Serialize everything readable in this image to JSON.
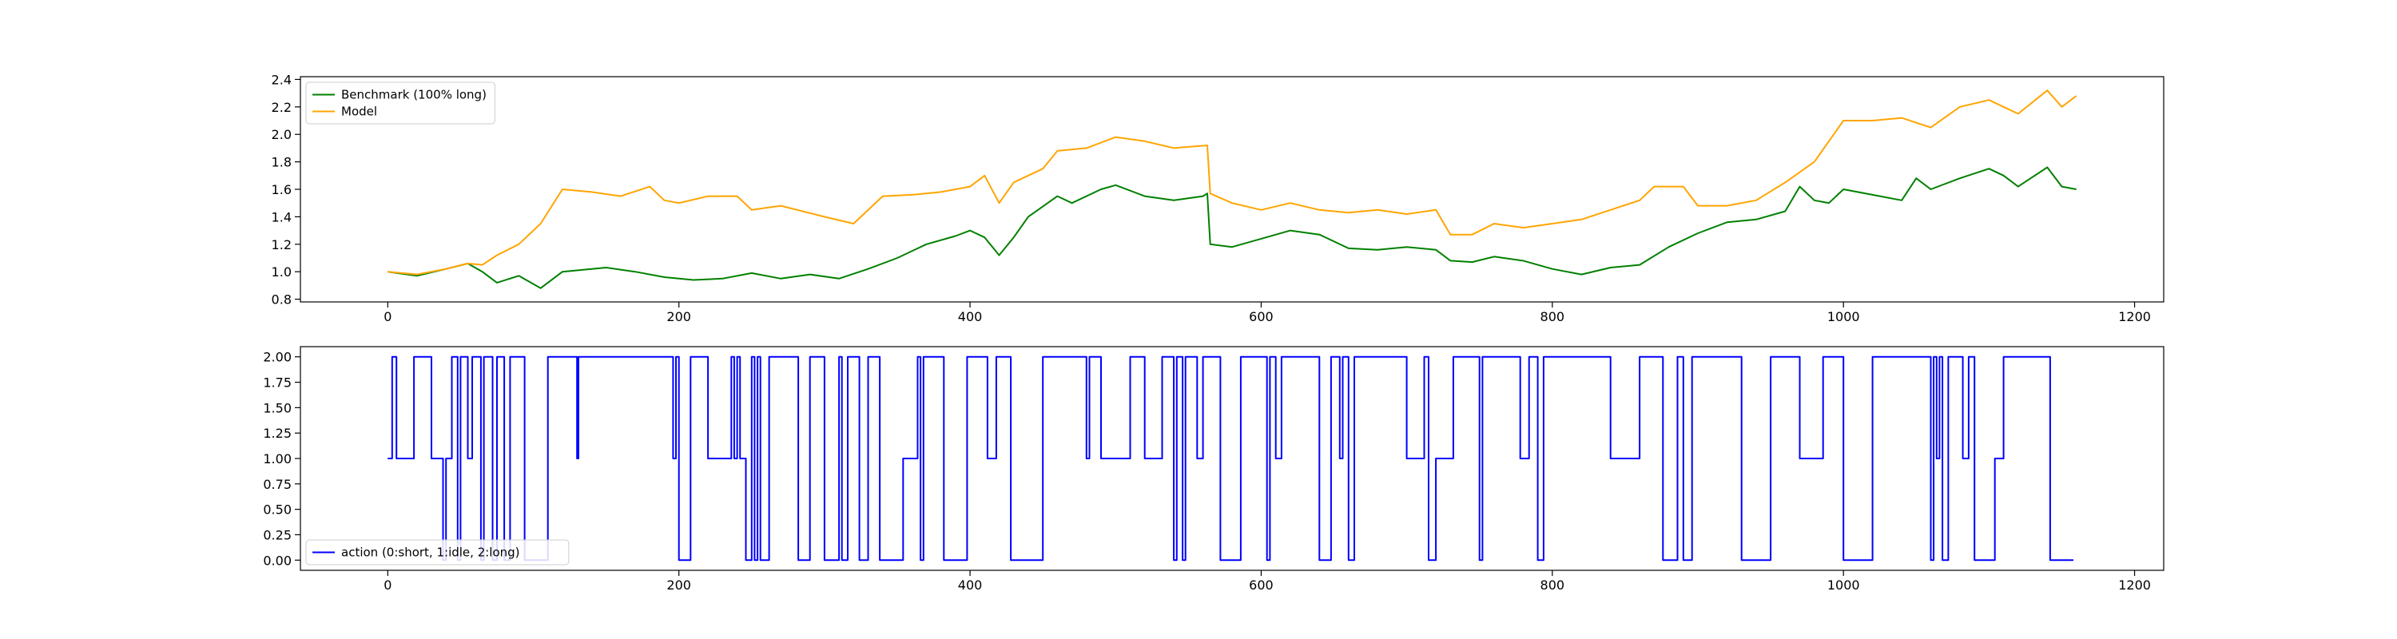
{
  "chart_data": [
    {
      "type": "line",
      "title": "",
      "xlabel": "",
      "ylabel": "",
      "xlim": [
        -60,
        1220
      ],
      "ylim": [
        0.78,
        2.42
      ],
      "xticks": [
        0,
        200,
        400,
        600,
        800,
        1000,
        1200
      ],
      "xtick_labels": [
        "0",
        "200",
        "400",
        "600",
        "800",
        "1000",
        "1200"
      ],
      "yticks": [
        0.8,
        1.0,
        1.2,
        1.4,
        1.6,
        1.8,
        2.0,
        2.2,
        2.4
      ],
      "ytick_labels": [
        "0.8",
        "1.0",
        "1.2",
        "1.4",
        "1.6",
        "1.8",
        "2.0",
        "2.2",
        "2.4"
      ],
      "grid": false,
      "legend_position": "top-left",
      "series": [
        {
          "name": "Benchmark (100% long)",
          "color": "#008000",
          "points": [
            [
              0,
              1.0
            ],
            [
              20,
              0.97
            ],
            [
              40,
              1.02
            ],
            [
              55,
              1.06
            ],
            [
              65,
              1.0
            ],
            [
              75,
              0.92
            ],
            [
              90,
              0.97
            ],
            [
              105,
              0.88
            ],
            [
              120,
              1.0
            ],
            [
              150,
              1.03
            ],
            [
              170,
              1.0
            ],
            [
              190,
              0.96
            ],
            [
              210,
              0.94
            ],
            [
              230,
              0.95
            ],
            [
              250,
              0.99
            ],
            [
              270,
              0.95
            ],
            [
              290,
              0.98
            ],
            [
              310,
              0.95
            ],
            [
              330,
              1.02
            ],
            [
              350,
              1.1
            ],
            [
              370,
              1.2
            ],
            [
              390,
              1.26
            ],
            [
              400,
              1.3
            ],
            [
              410,
              1.25
            ],
            [
              420,
              1.12
            ],
            [
              430,
              1.25
            ],
            [
              440,
              1.4
            ],
            [
              460,
              1.55
            ],
            [
              470,
              1.5
            ],
            [
              490,
              1.6
            ],
            [
              500,
              1.63
            ],
            [
              520,
              1.55
            ],
            [
              540,
              1.52
            ],
            [
              560,
              1.55
            ],
            [
              563,
              1.57
            ],
            [
              565,
              1.2
            ],
            [
              580,
              1.18
            ],
            [
              600,
              1.24
            ],
            [
              620,
              1.3
            ],
            [
              640,
              1.27
            ],
            [
              660,
              1.17
            ],
            [
              680,
              1.16
            ],
            [
              700,
              1.18
            ],
            [
              720,
              1.16
            ],
            [
              730,
              1.08
            ],
            [
              745,
              1.07
            ],
            [
              760,
              1.11
            ],
            [
              780,
              1.08
            ],
            [
              800,
              1.02
            ],
            [
              820,
              0.98
            ],
            [
              840,
              1.03
            ],
            [
              860,
              1.05
            ],
            [
              880,
              1.18
            ],
            [
              900,
              1.28
            ],
            [
              920,
              1.36
            ],
            [
              940,
              1.38
            ],
            [
              960,
              1.44
            ],
            [
              970,
              1.62
            ],
            [
              980,
              1.52
            ],
            [
              990,
              1.5
            ],
            [
              1000,
              1.6
            ],
            [
              1020,
              1.56
            ],
            [
              1040,
              1.52
            ],
            [
              1050,
              1.68
            ],
            [
              1060,
              1.6
            ],
            [
              1080,
              1.68
            ],
            [
              1100,
              1.75
            ],
            [
              1110,
              1.7
            ],
            [
              1120,
              1.62
            ],
            [
              1140,
              1.76
            ],
            [
              1150,
              1.62
            ],
            [
              1160,
              1.6
            ]
          ]
        },
        {
          "name": "Model",
          "color": "#ffa500",
          "points": [
            [
              0,
              1.0
            ],
            [
              20,
              0.98
            ],
            [
              40,
              1.02
            ],
            [
              55,
              1.06
            ],
            [
              65,
              1.05
            ],
            [
              75,
              1.12
            ],
            [
              90,
              1.2
            ],
            [
              105,
              1.35
            ],
            [
              120,
              1.6
            ],
            [
              140,
              1.58
            ],
            [
              160,
              1.55
            ],
            [
              180,
              1.62
            ],
            [
              190,
              1.52
            ],
            [
              200,
              1.5
            ],
            [
              220,
              1.55
            ],
            [
              240,
              1.55
            ],
            [
              250,
              1.45
            ],
            [
              270,
              1.48
            ],
            [
              300,
              1.4
            ],
            [
              320,
              1.35
            ],
            [
              340,
              1.55
            ],
            [
              360,
              1.56
            ],
            [
              380,
              1.58
            ],
            [
              400,
              1.62
            ],
            [
              410,
              1.7
            ],
            [
              420,
              1.5
            ],
            [
              430,
              1.65
            ],
            [
              440,
              1.7
            ],
            [
              450,
              1.75
            ],
            [
              460,
              1.88
            ],
            [
              480,
              1.9
            ],
            [
              500,
              1.98
            ],
            [
              520,
              1.95
            ],
            [
              540,
              1.9
            ],
            [
              563,
              1.92
            ],
            [
              565,
              1.57
            ],
            [
              580,
              1.5
            ],
            [
              600,
              1.45
            ],
            [
              620,
              1.5
            ],
            [
              640,
              1.45
            ],
            [
              660,
              1.43
            ],
            [
              680,
              1.45
            ],
            [
              700,
              1.42
            ],
            [
              720,
              1.45
            ],
            [
              730,
              1.27
            ],
            [
              745,
              1.27
            ],
            [
              760,
              1.35
            ],
            [
              780,
              1.32
            ],
            [
              800,
              1.35
            ],
            [
              820,
              1.38
            ],
            [
              840,
              1.45
            ],
            [
              860,
              1.52
            ],
            [
              870,
              1.62
            ],
            [
              890,
              1.62
            ],
            [
              900,
              1.48
            ],
            [
              920,
              1.48
            ],
            [
              940,
              1.52
            ],
            [
              960,
              1.65
            ],
            [
              980,
              1.8
            ],
            [
              1000,
              2.1
            ],
            [
              1020,
              2.1
            ],
            [
              1040,
              2.12
            ],
            [
              1060,
              2.05
            ],
            [
              1080,
              2.2
            ],
            [
              1100,
              2.25
            ],
            [
              1110,
              2.2
            ],
            [
              1120,
              2.15
            ],
            [
              1140,
              2.32
            ],
            [
              1150,
              2.2
            ],
            [
              1160,
              2.28
            ]
          ]
        }
      ]
    },
    {
      "type": "line",
      "title": "",
      "xlabel": "",
      "ylabel": "",
      "xlim": [
        -60,
        1220
      ],
      "ylim": [
        -0.1,
        2.1
      ],
      "xticks": [
        0,
        200,
        400,
        600,
        800,
        1000,
        1200
      ],
      "xtick_labels": [
        "0",
        "200",
        "400",
        "600",
        "800",
        "1000",
        "1200"
      ],
      "yticks": [
        0,
        0.25,
        0.5,
        0.75,
        1.0,
        1.25,
        1.5,
        1.75,
        2.0
      ],
      "ytick_labels": [
        "0.00",
        "0.25",
        "0.50",
        "0.75",
        "1.00",
        "1.25",
        "1.50",
        "1.75",
        "2.00"
      ],
      "grid": false,
      "legend_position": "bottom-left",
      "series": [
        {
          "name": "action (0:short, 1:idle, 2:long)",
          "color": "#0000ff",
          "segments": [
            [
              0,
              1
            ],
            [
              3,
              2
            ],
            [
              6,
              1
            ],
            [
              18,
              2
            ],
            [
              30,
              1
            ],
            [
              38,
              0
            ],
            [
              40,
              1
            ],
            [
              44,
              2
            ],
            [
              48,
              0
            ],
            [
              50,
              2
            ],
            [
              55,
              1
            ],
            [
              58,
              2
            ],
            [
              64,
              0
            ],
            [
              66,
              2
            ],
            [
              72,
              0
            ],
            [
              75,
              2
            ],
            [
              80,
              0
            ],
            [
              84,
              2
            ],
            [
              94,
              0
            ],
            [
              110,
              2
            ],
            [
              130,
              1
            ],
            [
              131,
              2
            ],
            [
              196,
              1
            ],
            [
              198,
              2
            ],
            [
              200,
              0
            ],
            [
              208,
              2
            ],
            [
              220,
              1
            ],
            [
              236,
              2
            ],
            [
              238,
              1
            ],
            [
              240,
              2
            ],
            [
              242,
              1
            ],
            [
              246,
              0
            ],
            [
              250,
              2
            ],
            [
              252,
              0
            ],
            [
              254,
              2
            ],
            [
              256,
              0
            ],
            [
              262,
              2
            ],
            [
              282,
              0
            ],
            [
              290,
              2
            ],
            [
              300,
              0
            ],
            [
              310,
              2
            ],
            [
              312,
              0
            ],
            [
              316,
              2
            ],
            [
              324,
              0
            ],
            [
              330,
              2
            ],
            [
              338,
              0
            ],
            [
              354,
              1
            ],
            [
              364,
              2
            ],
            [
              366,
              0
            ],
            [
              368,
              2
            ],
            [
              382,
              0
            ],
            [
              398,
              2
            ],
            [
              412,
              1
            ],
            [
              418,
              2
            ],
            [
              428,
              0
            ],
            [
              450,
              2
            ],
            [
              480,
              1
            ],
            [
              482,
              2
            ],
            [
              490,
              1
            ],
            [
              510,
              2
            ],
            [
              520,
              1
            ],
            [
              532,
              2
            ],
            [
              540,
              0
            ],
            [
              542,
              2
            ],
            [
              546,
              0
            ],
            [
              548,
              2
            ],
            [
              556,
              1
            ],
            [
              560,
              2
            ],
            [
              572,
              0
            ],
            [
              586,
              2
            ],
            [
              604,
              0
            ],
            [
              606,
              2
            ],
            [
              610,
              1
            ],
            [
              614,
              2
            ],
            [
              640,
              0
            ],
            [
              648,
              2
            ],
            [
              654,
              1
            ],
            [
              656,
              2
            ],
            [
              660,
              0
            ],
            [
              664,
              2
            ],
            [
              700,
              1
            ],
            [
              712,
              2
            ],
            [
              715,
              0
            ],
            [
              720,
              1
            ],
            [
              732,
              2
            ],
            [
              750,
              0
            ],
            [
              752,
              2
            ],
            [
              778,
              1
            ],
            [
              784,
              2
            ],
            [
              790,
              0
            ],
            [
              794,
              2
            ],
            [
              840,
              1
            ],
            [
              860,
              2
            ],
            [
              876,
              0
            ],
            [
              886,
              2
            ],
            [
              890,
              0
            ],
            [
              896,
              2
            ],
            [
              930,
              0
            ],
            [
              950,
              2
            ],
            [
              970,
              1
            ],
            [
              986,
              2
            ],
            [
              1000,
              0
            ],
            [
              1020,
              2
            ],
            [
              1060,
              0
            ],
            [
              1062,
              2
            ],
            [
              1064,
              1
            ],
            [
              1066,
              2
            ],
            [
              1068,
              0
            ],
            [
              1072,
              2
            ],
            [
              1082,
              1
            ],
            [
              1086,
              2
            ],
            [
              1090,
              0
            ],
            [
              1104,
              1
            ],
            [
              1110,
              2
            ],
            [
              1142,
              0
            ],
            [
              1158,
              0
            ]
          ]
        }
      ]
    }
  ]
}
